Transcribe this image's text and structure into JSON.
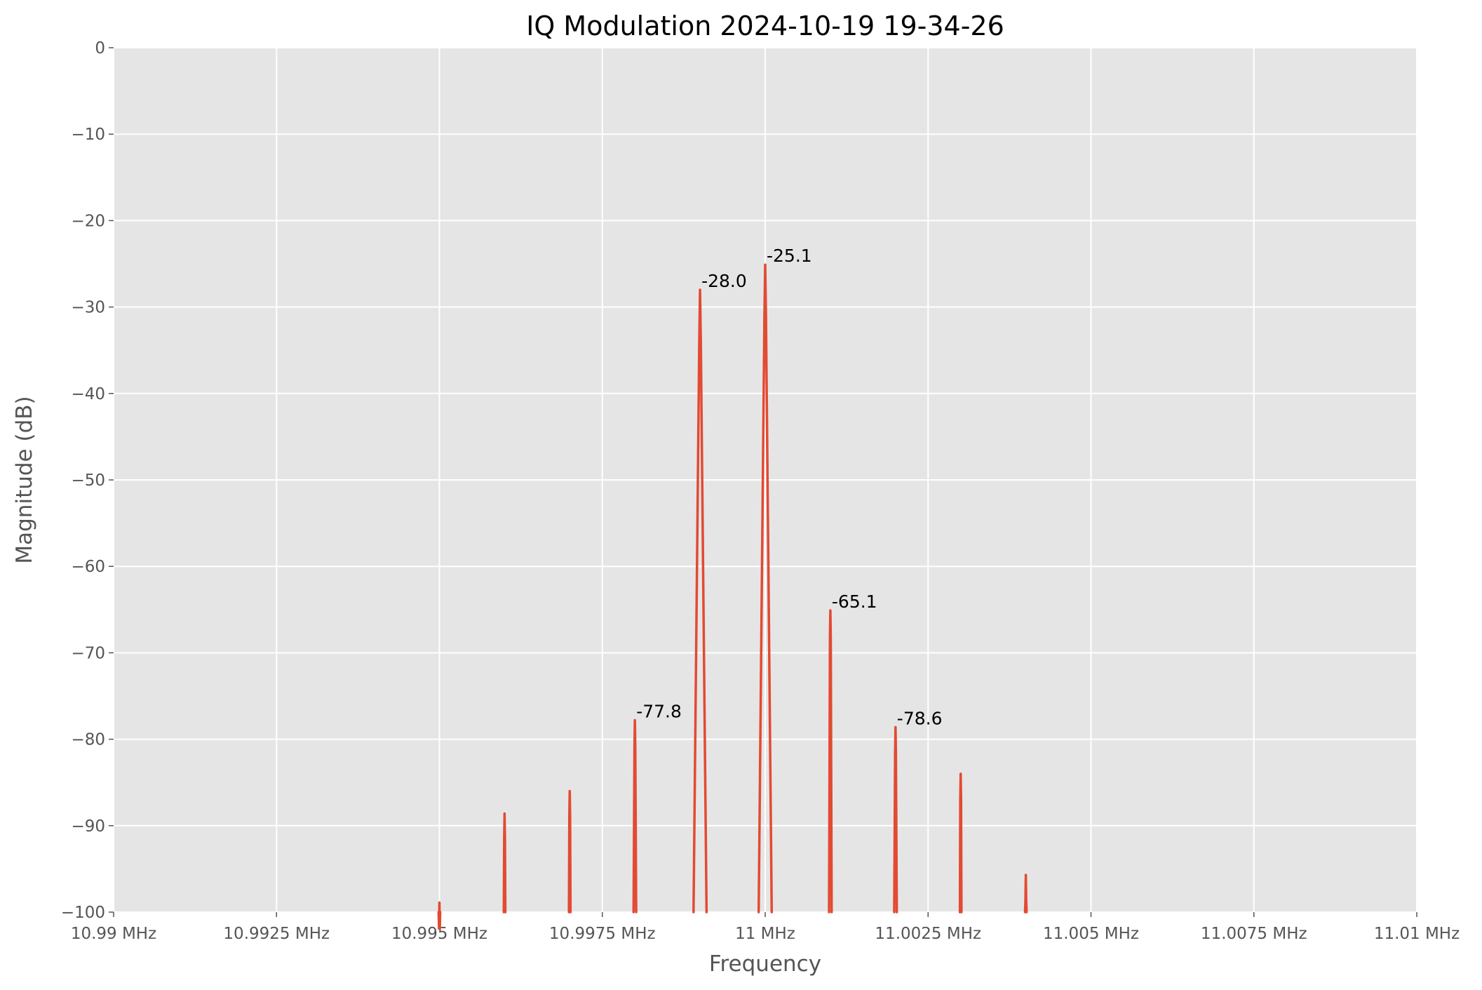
{
  "chart_data": {
    "type": "line",
    "title": "IQ Modulation 2024-10-19 19-34-26",
    "xlabel": "Frequency",
    "ylabel": "Magnitude (dB)",
    "xlim": [
      10.99,
      11.01
    ],
    "ylim": [
      -100,
      0
    ],
    "x_unit": "MHz",
    "grid": true,
    "legend": "none",
    "x_ticks": [
      {
        "value": 10.99,
        "label": "10.99 MHz"
      },
      {
        "value": 10.9925,
        "label": "10.9925 MHz"
      },
      {
        "value": 10.995,
        "label": "10.995 MHz"
      },
      {
        "value": 10.9975,
        "label": "10.9975 MHz"
      },
      {
        "value": 11.0,
        "label": "11 MHz"
      },
      {
        "value": 11.0025,
        "label": "11.0025 MHz"
      },
      {
        "value": 11.005,
        "label": "11.005 MHz"
      },
      {
        "value": 11.0075,
        "label": "11.0075 MHz"
      },
      {
        "value": 11.01,
        "label": "11.01 MHz"
      }
    ],
    "y_ticks": [
      {
        "value": 0,
        "label": "0"
      },
      {
        "value": -10,
        "label": "−10"
      },
      {
        "value": -20,
        "label": "−20"
      },
      {
        "value": -30,
        "label": "−30"
      },
      {
        "value": -40,
        "label": "−40"
      },
      {
        "value": -50,
        "label": "−50"
      },
      {
        "value": -60,
        "label": "−60"
      },
      {
        "value": -70,
        "label": "−70"
      },
      {
        "value": -80,
        "label": "−80"
      },
      {
        "value": -90,
        "label": "−90"
      },
      {
        "value": -100,
        "label": "−100"
      }
    ],
    "series": [
      {
        "color": "#e24a33",
        "peaks": [
          {
            "x": 10.995,
            "y": -98.9,
            "label": ""
          },
          {
            "x": 10.996,
            "y": -88.6,
            "label": ""
          },
          {
            "x": 10.997,
            "y": -86.0,
            "label": ""
          },
          {
            "x": 10.998,
            "y": -77.8,
            "label": "-77.8"
          },
          {
            "x": 10.999,
            "y": -28.0,
            "label": "-28.0"
          },
          {
            "x": 11.0,
            "y": -25.1,
            "label": "-25.1"
          },
          {
            "x": 11.001,
            "y": -65.1,
            "label": "-65.1"
          },
          {
            "x": 11.002,
            "y": -78.6,
            "label": "-78.6"
          },
          {
            "x": 11.003,
            "y": -84.0,
            "label": ""
          },
          {
            "x": 11.004,
            "y": -95.7,
            "label": ""
          }
        ]
      }
    ]
  }
}
